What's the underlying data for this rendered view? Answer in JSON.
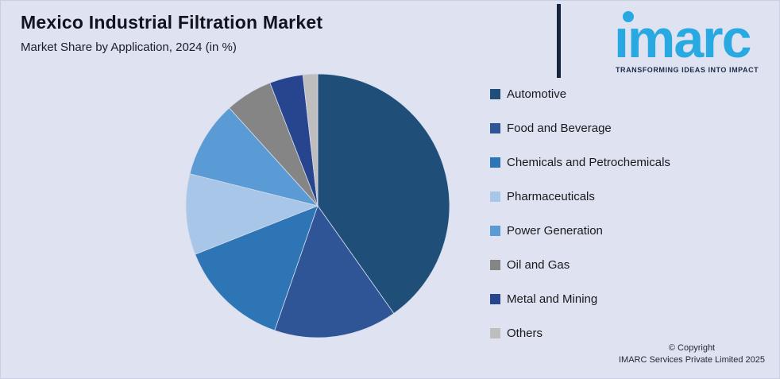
{
  "header": {
    "title": "Mexico Industrial Filtration Market",
    "subtitle": "Market Share by Application, 2024 (in %)"
  },
  "logo": {
    "wordmark": "ımarc",
    "tagline": "TRANSFORMING IDEAS INTO IMPACT",
    "brand_color": "#29A9E1",
    "tagline_color": "#1B2B47",
    "bar_color": "#16243E"
  },
  "chart_data": {
    "type": "pie",
    "title": "Mexico Industrial Filtration Market",
    "subtitle": "Market Share by Application, 2024 (in %)",
    "unit": "%",
    "start_angle_deg": 0,
    "direction": "clockwise",
    "legend_position": "right",
    "slices": [
      {
        "label": "Automotive",
        "value": 40.2,
        "color": "#1F4E79"
      },
      {
        "label": "Food and Beverage",
        "value": 15.1,
        "color": "#2F5597"
      },
      {
        "label": "Chemicals and Petrochemicals",
        "value": 13.7,
        "color": "#2E75B6"
      },
      {
        "label": "Pharmaceuticals",
        "value": 9.9,
        "color": "#A8C7E8"
      },
      {
        "label": "Power Generation",
        "value": 9.4,
        "color": "#5B9BD5"
      },
      {
        "label": "Oil and Gas",
        "value": 5.8,
        "color": "#858585"
      },
      {
        "label": "Metal and Mining",
        "value": 4.1,
        "color": "#27458F"
      },
      {
        "label": "Others",
        "value": 1.8,
        "color": "#BFBEBE"
      }
    ]
  },
  "footer": {
    "copyright_line1": "© Copyright",
    "copyright_line2": "IMARC Services Private Limited 2025"
  },
  "colors": {
    "background": "#DEE2F1",
    "slice_divider": "#D5DBEC",
    "title_text": "#11131F",
    "legend_text": "#191A1E"
  }
}
